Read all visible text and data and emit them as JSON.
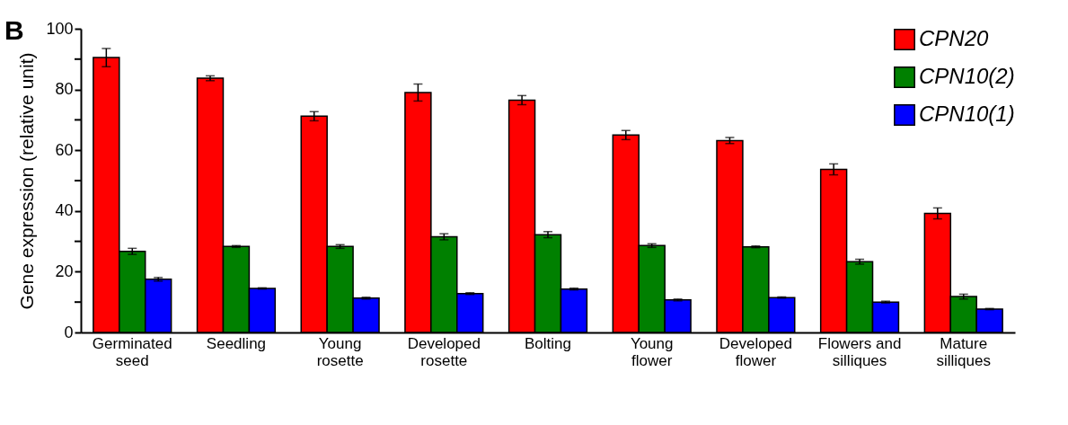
{
  "chart_data": {
    "type": "bar",
    "ylabel": "Gene expression (relative unit)",
    "annotations": [
      "B"
    ],
    "categories": [
      "Germinated\nseed",
      "Seedling",
      "Young\nrosette",
      "Developed\nrosette",
      "Bolting",
      "Young\nflower",
      "Developed\nflower",
      "Flowers and\nsilliques",
      "Mature\nsilliques"
    ],
    "series": [
      {
        "name": "CPN20",
        "color": "#ff0000",
        "values": [
          90.5,
          83.7,
          71.2,
          79,
          76.5,
          65,
          63.2,
          53.7,
          39.2
        ],
        "errors": [
          3,
          0.8,
          1.5,
          2.8,
          1.5,
          1.5,
          1,
          1.8,
          1.8
        ]
      },
      {
        "name": "CPN10(2)",
        "color": "#008000",
        "values": [
          26.7,
          28.3,
          28.3,
          31.5,
          32.2,
          28.6,
          28.2,
          23.3,
          11.8
        ],
        "errors": [
          1,
          0.3,
          0.6,
          1,
          1,
          0.6,
          0.3,
          0.8,
          0.8
        ]
      },
      {
        "name": "CPN10(1)",
        "color": "#0000ff",
        "values": [
          17.5,
          14.5,
          11.3,
          12.8,
          14.3,
          10.7,
          11.5,
          10,
          7.7
        ],
        "errors": [
          0.6,
          0.2,
          0.3,
          0.3,
          0.3,
          0.3,
          0.2,
          0.3,
          0.2
        ]
      }
    ],
    "ylim": [
      0,
      100
    ],
    "yticks": [
      0,
      {
        "value": 10,
        "label": null
      },
      20,
      {
        "value": 30,
        "label": null
      },
      40,
      {
        "value": 50,
        "label": null
      },
      60,
      {
        "value": 70,
        "label": null
      },
      80,
      {
        "value": 90,
        "label": null
      },
      100
    ],
    "grid": false,
    "legend": "top right"
  }
}
